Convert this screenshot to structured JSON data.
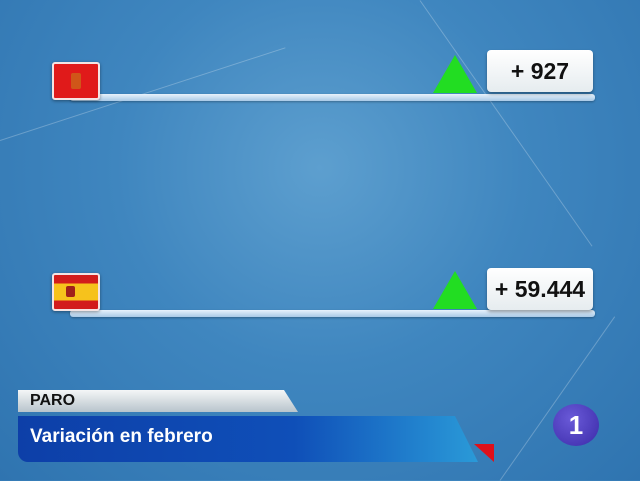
{
  "rows": [
    {
      "region": "Navarra",
      "flag_icon": "navarra-flag-icon",
      "trend": "up",
      "value": "+ 927"
    },
    {
      "region": "España",
      "flag_icon": "spain-flag-icon",
      "trend": "up",
      "value": "+ 59.444"
    }
  ],
  "lower_third": {
    "topic": "PARO",
    "headline": "Variación en febrero"
  },
  "channel_logo": "1",
  "colors": {
    "up": "#22dd22",
    "headline_bg": "#0f4fb8",
    "accent": "#e0101a"
  }
}
